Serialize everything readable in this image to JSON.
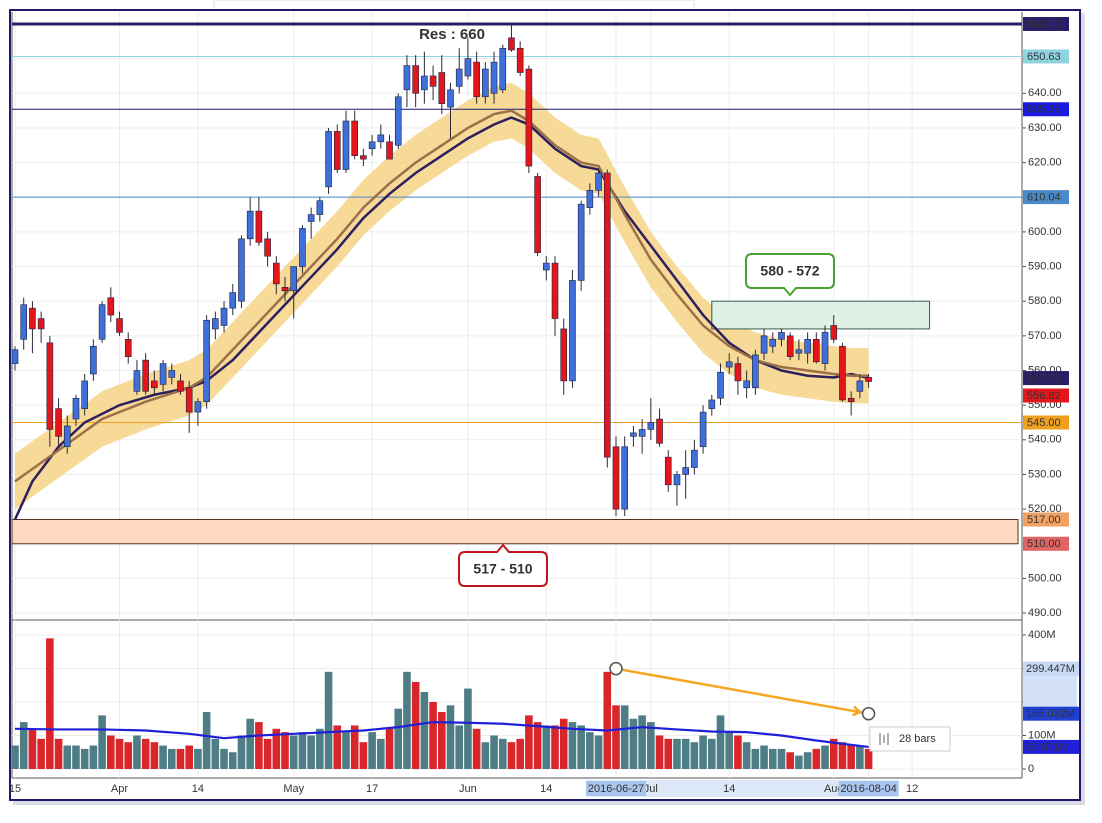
{
  "chart_data": {
    "type": "candlestick",
    "categories": [
      "15",
      null,
      null,
      null,
      null,
      null,
      null,
      null,
      null,
      null,
      null,
      null,
      "Apr",
      null,
      null,
      null,
      null,
      null,
      null,
      null,
      null,
      "14",
      null,
      null,
      null,
      null,
      null,
      null,
      null,
      null,
      null,
      null,
      "May",
      null,
      null,
      null,
      null,
      null,
      null,
      null,
      null,
      "17",
      null,
      null,
      null,
      null,
      null,
      null,
      null,
      null,
      null,
      null,
      "Jun",
      null,
      null,
      null,
      null,
      null,
      null,
      null,
      null,
      "14",
      null,
      null,
      null,
      null,
      null,
      null,
      null,
      "2016-06-27",
      null,
      null,
      null,
      "Jul",
      null,
      null,
      null,
      null,
      null,
      null,
      null,
      null,
      "14",
      null,
      null,
      null,
      null,
      null,
      null,
      null,
      null,
      null,
      null,
      null,
      "Aug",
      null,
      null,
      null,
      "2016-08-04",
      null,
      null,
      null,
      null,
      "12"
    ],
    "highlight": [
      69,
      98
    ],
    "highlight_color": "#a9c5ee",
    "open": [
      562,
      569,
      578,
      575,
      568,
      549,
      538,
      546,
      549,
      559,
      569,
      581,
      575,
      569,
      554,
      563,
      557,
      556,
      558,
      557,
      555,
      548,
      551,
      572,
      573,
      578,
      580,
      598,
      606,
      598,
      591,
      584,
      583,
      590,
      603,
      605,
      613,
      629,
      618,
      632,
      622,
      624,
      626,
      626,
      625,
      641,
      648,
      641,
      645,
      646,
      636,
      642,
      645,
      649,
      639,
      640,
      641,
      656,
      653,
      647,
      616,
      589,
      591,
      572,
      557,
      586,
      607,
      612,
      617,
      538,
      520,
      541,
      541,
      543,
      546,
      535,
      527,
      530,
      532,
      538,
      549,
      552,
      561,
      562,
      555,
      555,
      565,
      567,
      569,
      570,
      565,
      565,
      569,
      562,
      573,
      567,
      552,
      554,
      558,
      null,
      null,
      null,
      null,
      null
    ],
    "high": [
      567,
      581,
      580,
      577,
      570,
      552,
      547,
      553,
      559,
      569,
      580,
      584,
      577,
      571,
      563,
      565,
      560,
      563,
      562,
      559,
      557,
      552,
      576,
      577,
      580,
      585,
      599,
      610,
      610,
      600,
      593,
      587,
      590,
      602,
      607,
      610,
      630,
      631,
      635,
      635,
      624,
      628,
      631,
      628,
      640,
      651,
      651,
      652,
      648,
      651,
      643,
      653,
      656,
      652,
      649,
      652,
      654,
      660,
      655,
      648,
      617,
      593,
      593,
      575,
      589,
      609,
      614,
      618,
      618,
      541,
      541,
      544,
      546,
      552,
      549,
      537,
      531,
      537,
      540,
      550,
      553,
      562,
      565,
      564,
      560,
      566,
      572,
      571,
      572,
      571,
      569,
      571,
      571,
      573,
      576,
      568,
      554,
      559,
      559,
      null,
      null,
      null,
      null,
      null
    ],
    "low": [
      560,
      566,
      565,
      568,
      538,
      538,
      536,
      544,
      547,
      557,
      568,
      574,
      570,
      562,
      553,
      553,
      553,
      554,
      556,
      553,
      542,
      544,
      549,
      569,
      571,
      576,
      578,
      596,
      596,
      590,
      582,
      580,
      575,
      588,
      598,
      603,
      611,
      617,
      617,
      621,
      619,
      622,
      624,
      621,
      624,
      636,
      636,
      637,
      638,
      634,
      627,
      640,
      644,
      637,
      637,
      637,
      640,
      652,
      645,
      617,
      593,
      586,
      570,
      553,
      555,
      583,
      605,
      610,
      532,
      518,
      518,
      538,
      536,
      540,
      538,
      525,
      521,
      523,
      530,
      536,
      547,
      550,
      559,
      553,
      552,
      553,
      563,
      565,
      567,
      563,
      563,
      562,
      562,
      560,
      568,
      551,
      547,
      552,
      555,
      null,
      null,
      null,
      null,
      null
    ],
    "close": [
      566,
      579,
      572,
      572,
      543,
      541,
      544,
      552,
      557,
      567,
      579,
      576,
      571,
      564,
      560,
      554,
      555,
      562,
      560,
      554,
      548,
      551,
      574.5,
      575,
      578,
      582.5,
      598,
      606,
      597,
      593,
      585,
      583,
      590,
      601,
      605,
      609,
      629,
      618,
      632,
      622,
      621,
      626,
      628,
      621,
      639,
      648,
      640,
      645,
      642,
      637,
      641,
      647,
      650,
      639,
      647,
      649,
      653,
      652.5,
      646,
      619,
      594,
      591,
      575,
      557,
      586,
      608,
      612,
      617,
      535,
      520,
      538,
      542,
      543,
      545,
      539,
      527,
      530,
      532,
      537,
      548,
      551.5,
      559.5,
      562.5,
      557,
      557,
      564.5,
      570,
      569,
      571,
      564,
      566,
      569,
      562.5,
      571,
      569,
      551.5,
      551,
      557,
      556.82,
      null,
      null,
      null,
      null,
      null
    ],
    "up_color": "#3f6fd8",
    "down_color": "#e3161b",
    "ylim": [
      488,
      663.46
    ],
    "yticks": [
      {
        "value": 490,
        "label": "490.00"
      },
      {
        "value": 500,
        "label": "500.00"
      },
      {
        "value": 510,
        "label": "510.00"
      },
      {
        "value": 520,
        "label": "520.00"
      },
      {
        "value": 530,
        "label": "530.00"
      },
      {
        "value": 540,
        "label": "540.00"
      },
      {
        "value": 550,
        "label": "550.00"
      },
      {
        "value": 560,
        "label": "560.00"
      },
      {
        "value": 570,
        "label": "570.00"
      },
      {
        "value": 580,
        "label": "580.00"
      },
      {
        "value": 590,
        "label": "590.00"
      },
      {
        "value": 600,
        "label": "600.00"
      },
      {
        "value": 610,
        "label": "610.00"
      },
      {
        "value": 620,
        "label": "620.00"
      },
      {
        "value": 630,
        "label": "630.00"
      },
      {
        "value": 640,
        "label": "640.00"
      },
      {
        "value": 650,
        "label": "650.00"
      }
    ],
    "grid": true,
    "band": {
      "color": "#f6d486",
      "x": [
        0,
        5,
        10,
        15,
        20,
        22,
        25,
        28,
        31,
        34,
        37,
        40,
        43,
        46,
        49,
        52,
        55,
        57,
        59,
        62,
        65,
        67,
        70,
        73,
        76,
        79,
        82,
        85,
        88,
        91,
        94,
        96,
        98
      ],
      "upper": [
        536,
        545,
        554,
        559,
        563,
        566,
        574,
        582,
        590,
        598,
        606,
        615,
        622,
        628,
        633,
        638,
        642,
        643,
        640,
        633,
        628,
        627,
        613,
        600,
        590,
        581,
        575,
        571,
        569,
        568,
        567,
        566.5,
        566.5
      ],
      "lower": [
        520,
        529,
        538,
        543,
        547,
        550,
        558,
        566,
        574,
        582,
        590,
        599,
        606,
        612,
        617,
        622,
        626,
        627,
        624,
        617,
        612,
        611,
        597,
        584,
        574,
        565,
        559,
        555,
        553,
        552,
        551,
        550.5,
        550.5
      ]
    },
    "lines": [
      {
        "color": "#2e1f5e",
        "x": [
          0,
          2,
          5,
          8,
          12,
          16,
          20,
          22,
          25,
          28,
          31,
          34,
          37,
          40,
          43,
          46,
          49,
          52,
          55,
          57,
          59,
          62,
          65,
          67,
          70,
          73,
          76,
          79,
          82,
          85,
          88,
          91,
          94,
          96,
          98
        ],
        "values": [
          517,
          528,
          538,
          545,
          550,
          553,
          555,
          557,
          563,
          571,
          579,
          587,
          595,
          604,
          611,
          617,
          622,
          627,
          631,
          633,
          631,
          624,
          619,
          618,
          606,
          596,
          586,
          576,
          568,
          563,
          560,
          558.5,
          558,
          559,
          557.82
        ],
        "label_bg": "#2a1f66"
      },
      {
        "color": "#9c7049",
        "x": [
          0,
          5,
          10,
          15,
          20,
          22,
          25,
          28,
          31,
          34,
          37,
          40,
          43,
          46,
          49,
          52,
          55,
          57,
          59,
          62,
          65,
          67,
          70,
          73,
          76,
          79,
          82,
          85,
          88,
          91,
          94,
          96,
          98
        ],
        "values": [
          528,
          537,
          546,
          551,
          555,
          558,
          566,
          574,
          582,
          590,
          598,
          607,
          614,
          620,
          625,
          630,
          634,
          635,
          632,
          625,
          620,
          619,
          605,
          592,
          582,
          573,
          567,
          563,
          561,
          560,
          559,
          558.5,
          558.5
        ]
      }
    ],
    "last_close_bg": "#e3161b",
    "levels": [
      {
        "value": 660,
        "label": "660.00",
        "color": "#2a1f66",
        "width": 3,
        "text_color": "#ffffff"
      },
      {
        "value": 650.63,
        "label": "650.63",
        "color": "#8fd3e0",
        "width": 1,
        "text_color": "#1a3550"
      },
      {
        "value": 635.39,
        "label": "635.39",
        "color": "#1b1b70",
        "width": 1,
        "text_color": "#ffffff",
        "label_bg": "#1a1ae0"
      },
      {
        "value": 610.04,
        "label": "610.04",
        "color": "#4a8ac8",
        "width": 1,
        "text_color": "#ffffff"
      },
      {
        "value": 545,
        "label": "545.00",
        "color": "#f0a020",
        "width": 1,
        "text_color": "#222222"
      }
    ],
    "zones": [
      {
        "upper": {
          "value": 517,
          "label": "517.00",
          "color": "#f0a060"
        },
        "lower": {
          "value": 510,
          "label": "510.00",
          "color": "#e06464"
        },
        "fill": "#fdd9c1",
        "stroke": "#5a3020",
        "callout": "517 - 510",
        "callout_color": "#c0151b"
      },
      {
        "upper": {
          "value": 580
        },
        "lower": {
          "value": 572
        },
        "x": [
          80,
          105
        ],
        "fill": "#dff0e4",
        "stroke": "#3a5a4a",
        "callout": "580 - 572",
        "callout_color": "#4aa030"
      }
    ],
    "annotation": "Res : 660",
    "volume": {
      "values": [
        70,
        140,
        120,
        90,
        390,
        90,
        70,
        70,
        60,
        70,
        160,
        100,
        90,
        80,
        100,
        90,
        80,
        70,
        60,
        60,
        70,
        60,
        170,
        90,
        60,
        50,
        100,
        150,
        140,
        90,
        120,
        110,
        100,
        110,
        100,
        120,
        290,
        130,
        110,
        130,
        80,
        110,
        90,
        120,
        180,
        290,
        260,
        230,
        200,
        170,
        190,
        130,
        240,
        120,
        80,
        100,
        90,
        80,
        90,
        160,
        140,
        130,
        130,
        150,
        140,
        130,
        110,
        100,
        290,
        190,
        190,
        150,
        160,
        140,
        100,
        90,
        90,
        90,
        80,
        100,
        90,
        160,
        110,
        100,
        80,
        60,
        70,
        60,
        60,
        50,
        40,
        50,
        60,
        70,
        90,
        80,
        70,
        70,
        60,
        null,
        null,
        null,
        null,
        null
      ],
      "up_color": "#4f7d86",
      "down_color": "#d9262a",
      "ylim": [
        -26.9,
        438.8
      ],
      "yticks": [
        0,
        {
          "value": 100,
          "label": "100M"
        },
        {
          "value": 200,
          "label": "200M"
        },
        {
          "value": 300,
          "label": "300M"
        },
        {
          "value": 400,
          "label": "400M"
        }
      ],
      "ma": {
        "color": "#2020d8",
        "x": [
          0,
          5,
          10,
          15,
          20,
          24,
          28,
          32,
          36,
          40,
          44,
          48,
          52,
          56,
          60,
          64,
          68,
          72,
          76,
          80,
          84,
          88,
          92,
          96,
          98
        ],
        "values": [
          120,
          118,
          118,
          115,
          105,
          92,
          100,
          105,
          110,
          115,
          125,
          140,
          138,
          135,
          128,
          120,
          115,
          125,
          118,
          112,
          110,
          100,
          85,
          72,
          65.871
        ],
        "value_labels": [
          null,
          null,
          null,
          null,
          null,
          null,
          null,
          null,
          null,
          null,
          null,
          null,
          null,
          null,
          null,
          null,
          null,
          null,
          null,
          null,
          null,
          null,
          null,
          null,
          "65.871M"
        ]
      },
      "arrow": {
        "x": [
          69,
          98
        ],
        "values": [
          299.447,
          165.032
        ],
        "value_labels": [
          "299.447M",
          "165.032M"
        ],
        "color": "#f5a623"
      },
      "bars_label": "28 bars"
    }
  }
}
